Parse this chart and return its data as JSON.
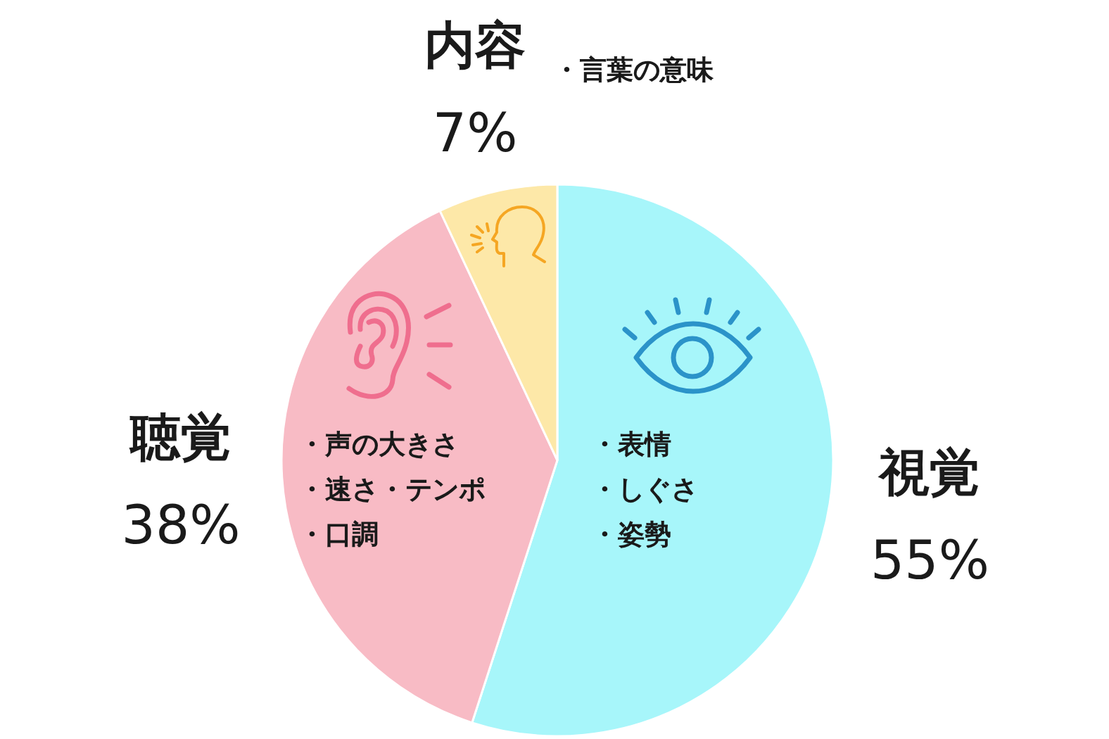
{
  "chart_data": {
    "type": "pie",
    "categories": [
      "視覚",
      "聴覚",
      "内容"
    ],
    "values": [
      55,
      38,
      7
    ],
    "colors": [
      "#a7f6fa",
      "#f8bbc5",
      "#fde8a8"
    ],
    "value_labels": [
      "55%",
      "38%",
      "7%"
    ],
    "annotations": [
      "・表情",
      "・しぐさ",
      "・姿勢",
      "・声の大きさ",
      "・速さ・テンポ",
      "・口調",
      "・言葉の意味"
    ]
  }
}
